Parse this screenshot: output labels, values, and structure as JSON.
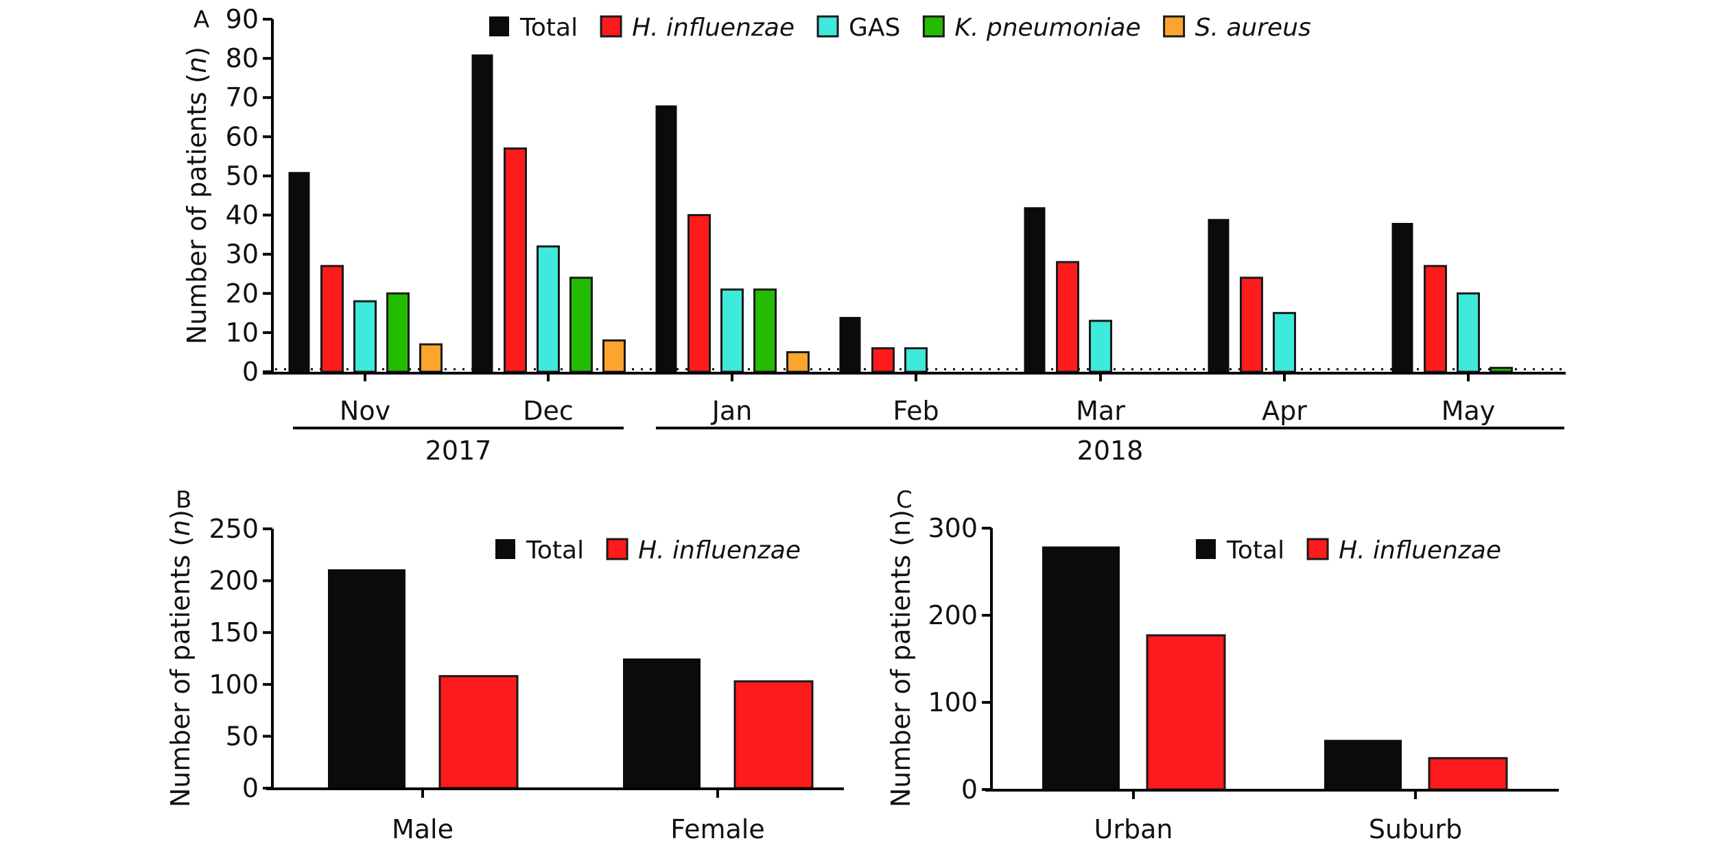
{
  "chart_data": [
    {
      "panel": "A",
      "type": "bar",
      "title": "",
      "xlabel": "",
      "ylabel": "Number of patients (n)",
      "ylabel_parts": [
        "Number of patients (",
        "n",
        ")"
      ],
      "ylim": [
        0,
        90
      ],
      "yticks": [
        0,
        10,
        20,
        30,
        40,
        50,
        60,
        70,
        80,
        90
      ],
      "categories": [
        "Nov",
        "Dec",
        "Jan",
        "Feb",
        "Mar",
        "Apr",
        "May"
      ],
      "year_groups": [
        {
          "label": "2017",
          "months": [
            "Nov",
            "Dec"
          ]
        },
        {
          "label": "2018",
          "months": [
            "Jan",
            "Feb",
            "Mar",
            "Apr",
            "May"
          ]
        }
      ],
      "reference_line": {
        "style": "dotted",
        "value": 1
      },
      "legend_position": "top-center",
      "grid": false,
      "series": [
        {
          "name": "Total",
          "italic": false,
          "color": "#0a0c0b",
          "values": [
            51,
            81,
            68,
            14,
            42,
            39,
            38
          ]
        },
        {
          "name": "H. influenzae",
          "italic": true,
          "color": "#fe1b1c",
          "values": [
            27,
            57,
            40,
            6,
            28,
            24,
            27
          ]
        },
        {
          "name": "GAS",
          "italic": false,
          "color": "#3eeadb",
          "values": [
            18,
            32,
            21,
            6,
            13,
            15,
            20
          ]
        },
        {
          "name": "K. pneumoniae",
          "italic": true,
          "color": "#23bc00",
          "values": [
            20,
            24,
            21,
            0,
            0,
            0,
            1
          ]
        },
        {
          "name": "S. aureus",
          "italic": true,
          "color": "#fca42c",
          "values": [
            7,
            8,
            5,
            0,
            0,
            0,
            0
          ]
        }
      ]
    },
    {
      "panel": "B",
      "type": "bar",
      "title": "",
      "xlabel": "",
      "ylabel": "Number of patients (n)",
      "ylabel_parts": [
        "Number of patients (",
        "n",
        ")"
      ],
      "ylim": [
        0,
        250
      ],
      "yticks": [
        0,
        50,
        100,
        150,
        200,
        250
      ],
      "categories": [
        "Male",
        "Female"
      ],
      "legend_position": "top-right",
      "grid": false,
      "series": [
        {
          "name": "Total",
          "italic": false,
          "color": "#0a0c0b",
          "values": [
            211,
            125
          ]
        },
        {
          "name": "H. influenzae",
          "italic": true,
          "color": "#fe1b1c",
          "values": [
            108,
            103
          ]
        }
      ]
    },
    {
      "panel": "C",
      "type": "bar",
      "title": "",
      "xlabel": "",
      "ylabel": "Number of patients (n)",
      "ylabel_parts": [
        "Number of patients (n)",
        "",
        ""
      ],
      "ylim": [
        0,
        300
      ],
      "yticks": [
        0,
        100,
        200,
        300
      ],
      "categories": [
        "Urban",
        "Suburb"
      ],
      "legend_position": "top-right",
      "grid": false,
      "series": [
        {
          "name": "Total",
          "italic": false,
          "color": "#0a0c0b",
          "values": [
            279,
            57
          ]
        },
        {
          "name": "H. influenzae",
          "italic": true,
          "color": "#fe1b1c",
          "values": [
            177,
            36
          ]
        }
      ]
    }
  ]
}
